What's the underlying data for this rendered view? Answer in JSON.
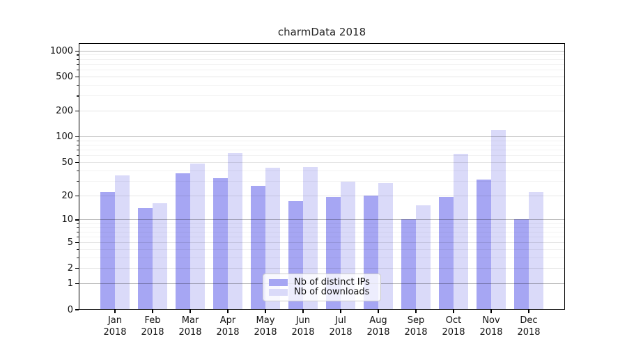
{
  "chart_data": {
    "type": "bar",
    "title": "charmData 2018",
    "categories": [
      "Jan",
      "Feb",
      "Mar",
      "Apr",
      "May",
      "Jun",
      "Jul",
      "Aug",
      "Sep",
      "Oct",
      "Nov",
      "Dec"
    ],
    "category_year": "2018",
    "series": [
      {
        "name": "Nb of distinct IPs",
        "color": "#a6a6f3",
        "values": [
          22,
          14,
          37,
          32,
          26,
          17,
          19,
          20,
          10,
          19,
          31,
          10
        ]
      },
      {
        "name": "Nb of downloads",
        "color": "#dadaf9",
        "values": [
          35,
          16,
          48,
          64,
          43,
          44,
          29,
          28,
          15,
          63,
          118,
          22
        ]
      }
    ],
    "y_axis": {
      "scale": "symlog",
      "ticks": [
        0,
        1,
        2,
        5,
        10,
        20,
        50,
        100,
        200,
        500,
        1000
      ],
      "decade_ticks": [
        1,
        10,
        100,
        1000
      ],
      "minor_ticks": [
        3,
        4,
        6,
        7,
        8,
        9,
        30,
        40,
        60,
        70,
        80,
        90,
        300,
        400,
        600,
        700,
        800,
        900
      ],
      "ylim": [
        0,
        1232
      ]
    },
    "xlabel": "",
    "ylabel": "",
    "grid": true,
    "legend_position": "lower-center"
  }
}
